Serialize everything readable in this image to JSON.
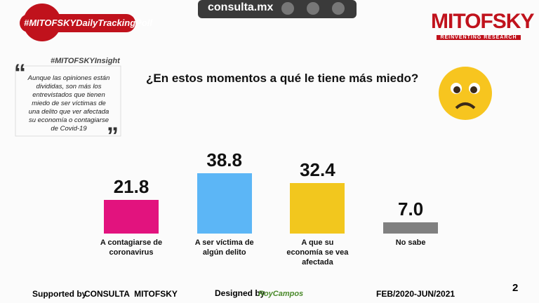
{
  "header": {
    "hashtag": "#MITOFSKYDailyTrackingPoll",
    "site": "consulta.mx",
    "brand": "MITOFSKY",
    "tagline": "REINVENTING RESEARCH"
  },
  "insight": {
    "tag": "#MITOFSKYInsight",
    "text": "Aunque las opiniones están divididas, son más los entrevistados que tienen miedo de ser víctimas de una delito que ver afectada su economía o contagiarse de Covid-19"
  },
  "chart_data": {
    "type": "bar",
    "title": "¿En estos momentos a qué le tiene más miedo?",
    "categories": [
      "A contagiarse de coronavirus",
      "A ser víctima de algún delito",
      "A que su economía se vea afectada",
      "No sabe"
    ],
    "values": [
      21.8,
      38.8,
      32.4,
      7.0
    ],
    "value_labels": [
      "21.8",
      "38.8",
      "32.4",
      "7.0"
    ],
    "colors": [
      "#e2137e",
      "#5cb6f6",
      "#f2c71e",
      "#808080"
    ]
  },
  "footer": {
    "supported_label": "Supported by",
    "supported_by": "CONSULTA  MITOFSKY",
    "designed_label": "Designed by",
    "designer": "RoyCampos",
    "period": "FEB/2020-JUN/2021",
    "page": 2
  }
}
